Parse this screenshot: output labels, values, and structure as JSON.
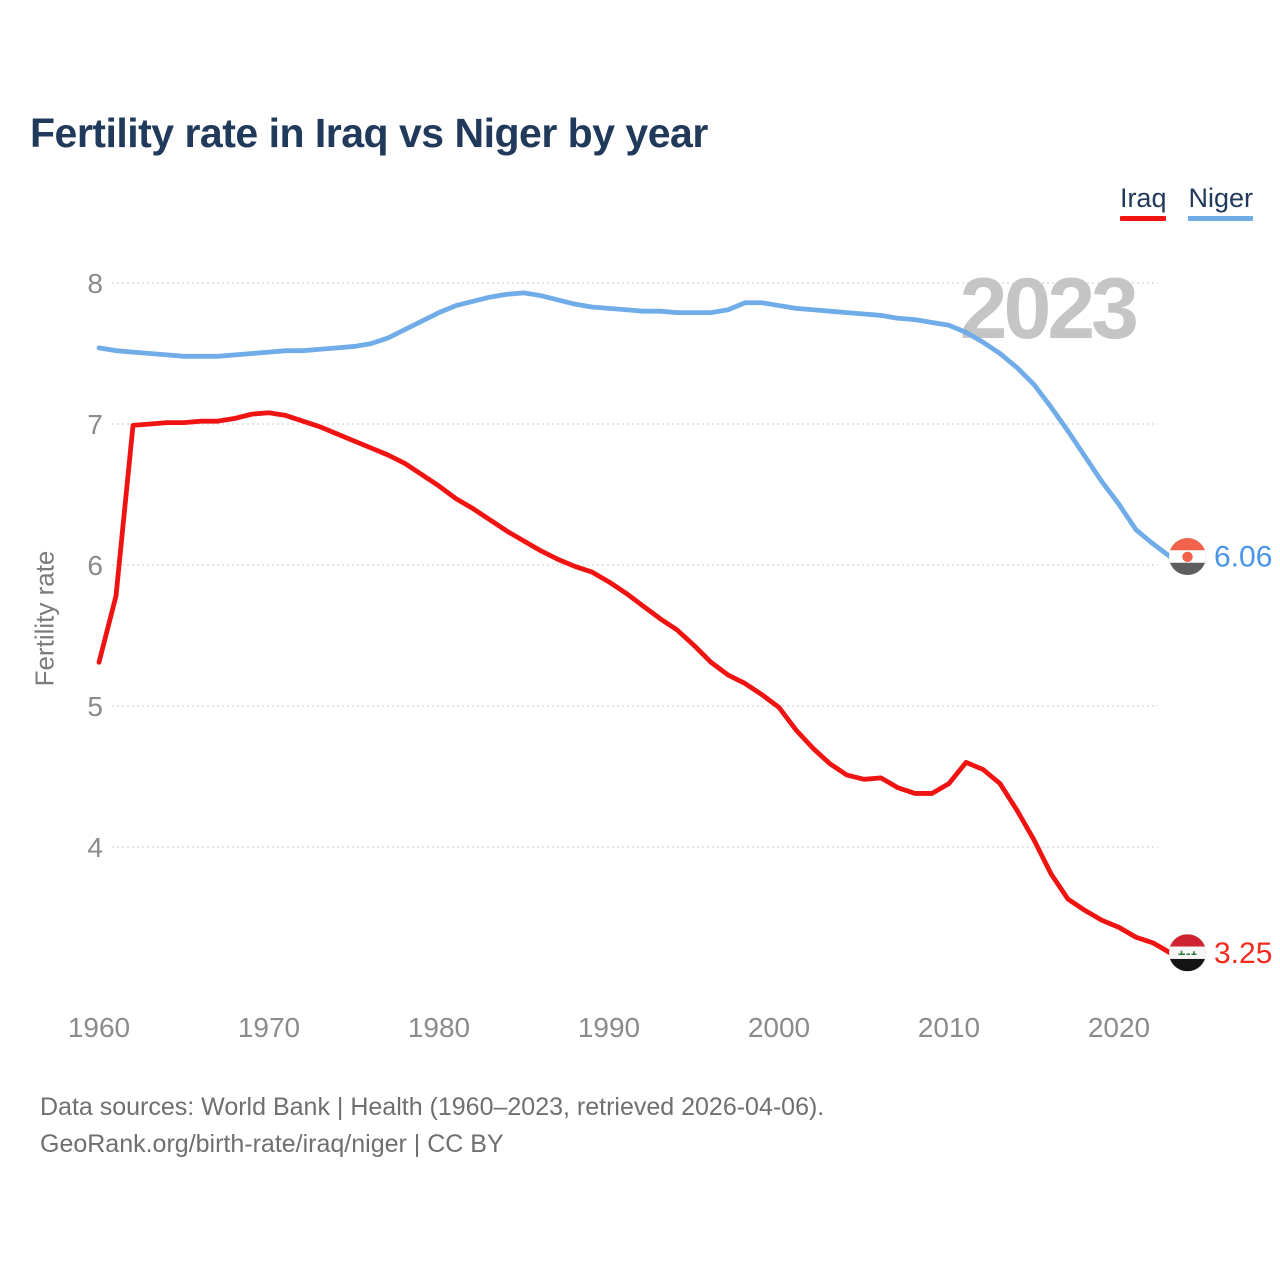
{
  "title": "Fertility rate in Iraq vs Niger by year",
  "watermark": "2023",
  "ylabel": "Fertility rate",
  "footer": {
    "line1": "Data sources: World Bank | Health (1960–2023, retrieved 2026-04-06).",
    "line2": "GeoRank.org/birth-rate/iraq/niger | CC BY"
  },
  "chart_data": {
    "type": "line",
    "title": "Fertility rate in Iraq vs Niger by year",
    "xlabel": "",
    "ylabel": "Fertility rate",
    "grid": true,
    "legend_position": "top-right",
    "xlim": [
      1960,
      2023
    ],
    "ylim": [
      3.1,
      8.2
    ],
    "y_ticks": [
      8,
      7,
      6,
      5,
      4
    ],
    "x_ticks": [
      "1960",
      "1970",
      "1980",
      "1990",
      "2000",
      "2010",
      "2020"
    ],
    "years": [
      1960,
      1961,
      1962,
      1963,
      1964,
      1965,
      1966,
      1967,
      1968,
      1969,
      1970,
      1971,
      1972,
      1973,
      1974,
      1975,
      1976,
      1977,
      1978,
      1979,
      1980,
      1981,
      1982,
      1983,
      1984,
      1985,
      1986,
      1987,
      1988,
      1989,
      1990,
      1991,
      1992,
      1993,
      1994,
      1995,
      1996,
      1997,
      1998,
      1999,
      2000,
      2001,
      2002,
      2003,
      2004,
      2005,
      2006,
      2007,
      2008,
      2009,
      2010,
      2011,
      2012,
      2013,
      2014,
      2015,
      2016,
      2017,
      2018,
      2019,
      2020,
      2021,
      2022,
      2023
    ],
    "series": [
      {
        "name": "Iraq",
        "color": "#ef1411",
        "label_color": "#f12b1d",
        "end_label": "3.25",
        "end_value": 3.25,
        "flag": {
          "bands": [
            "#cf2331",
            "#f6f6f6",
            "#141414"
          ],
          "emblem": "script",
          "emblem_color": "#2e7d3c"
        },
        "values": [
          5.31,
          5.78,
          6.99,
          7.0,
          7.01,
          7.01,
          7.02,
          7.02,
          7.04,
          7.07,
          7.08,
          7.06,
          7.02,
          6.98,
          6.93,
          6.88,
          6.83,
          6.78,
          6.72,
          6.64,
          6.56,
          6.47,
          6.4,
          6.32,
          6.24,
          6.17,
          6.1,
          6.04,
          5.99,
          5.95,
          5.88,
          5.8,
          5.71,
          5.62,
          5.54,
          5.43,
          5.31,
          5.22,
          5.16,
          5.08,
          4.99,
          4.83,
          4.7,
          4.59,
          4.51,
          4.48,
          4.49,
          4.42,
          4.38,
          4.38,
          4.45,
          4.6,
          4.55,
          4.45,
          4.26,
          4.05,
          3.81,
          3.63,
          3.55,
          3.48,
          3.43,
          3.36,
          3.32,
          3.25
        ]
      },
      {
        "name": "Niger",
        "color": "#70ade8",
        "label_color": "#4a95e8",
        "end_label": "6.06",
        "end_value": 6.06,
        "flag": {
          "bands": [
            "#f2614a",
            "#ffffff",
            "#5e5e5e"
          ],
          "emblem": "dot",
          "emblem_color": "#f2614a"
        },
        "values": [
          7.54,
          7.52,
          7.51,
          7.5,
          7.49,
          7.48,
          7.48,
          7.48,
          7.49,
          7.5,
          7.51,
          7.52,
          7.52,
          7.53,
          7.54,
          7.55,
          7.57,
          7.61,
          7.67,
          7.73,
          7.79,
          7.84,
          7.87,
          7.9,
          7.92,
          7.93,
          7.91,
          7.88,
          7.85,
          7.83,
          7.82,
          7.81,
          7.8,
          7.8,
          7.79,
          7.79,
          7.79,
          7.81,
          7.86,
          7.86,
          7.84,
          7.82,
          7.81,
          7.8,
          7.79,
          7.78,
          7.77,
          7.75,
          7.74,
          7.72,
          7.7,
          7.65,
          7.58,
          7.5,
          7.4,
          7.28,
          7.12,
          6.95,
          6.77,
          6.59,
          6.43,
          6.25,
          6.15,
          6.06
        ]
      }
    ]
  }
}
